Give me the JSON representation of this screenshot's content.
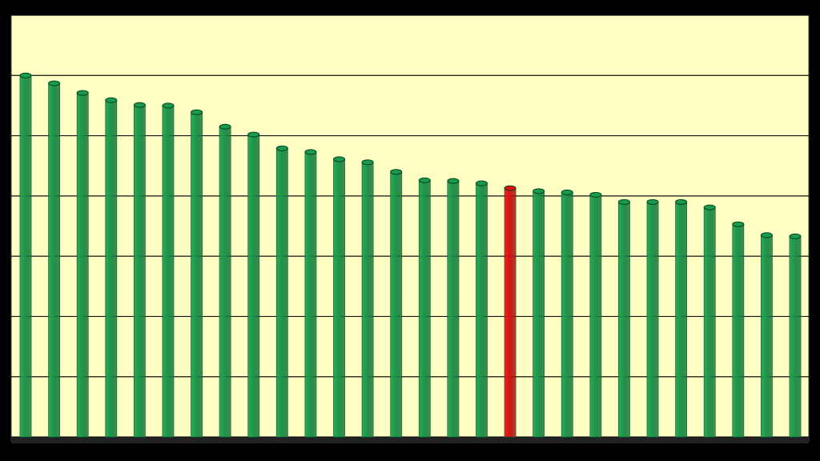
{
  "chart_data": {
    "type": "bar",
    "values": [
      6.0,
      5.87,
      5.71,
      5.59,
      5.51,
      5.5,
      5.39,
      5.15,
      5.02,
      4.79,
      4.73,
      4.61,
      4.56,
      4.4,
      4.26,
      4.25,
      4.21,
      4.13,
      4.08,
      4.06,
      4.02,
      3.9,
      3.9,
      3.9,
      3.81,
      3.53,
      3.35,
      3.33
    ],
    "colors": [
      "#1a9a4a",
      "#1a9a4a",
      "#1a9a4a",
      "#1a9a4a",
      "#1a9a4a",
      "#1a9a4a",
      "#1a9a4a",
      "#1a9a4a",
      "#1a9a4a",
      "#1a9a4a",
      "#1a9a4a",
      "#1a9a4a",
      "#1a9a4a",
      "#1a9a4a",
      "#1a9a4a",
      "#1a9a4a",
      "#1a9a4a",
      "#e01010",
      "#1a9a4a",
      "#1a9a4a",
      "#1a9a4a",
      "#1a9a4a",
      "#1a9a4a",
      "#1a9a4a",
      "#1a9a4a",
      "#1a9a4a",
      "#1a9a4a",
      "#1a9a4a"
    ],
    "ylim": [
      0,
      7
    ],
    "yticks": [
      0,
      1,
      2,
      3,
      4,
      5,
      6,
      7
    ],
    "grid": true
  }
}
